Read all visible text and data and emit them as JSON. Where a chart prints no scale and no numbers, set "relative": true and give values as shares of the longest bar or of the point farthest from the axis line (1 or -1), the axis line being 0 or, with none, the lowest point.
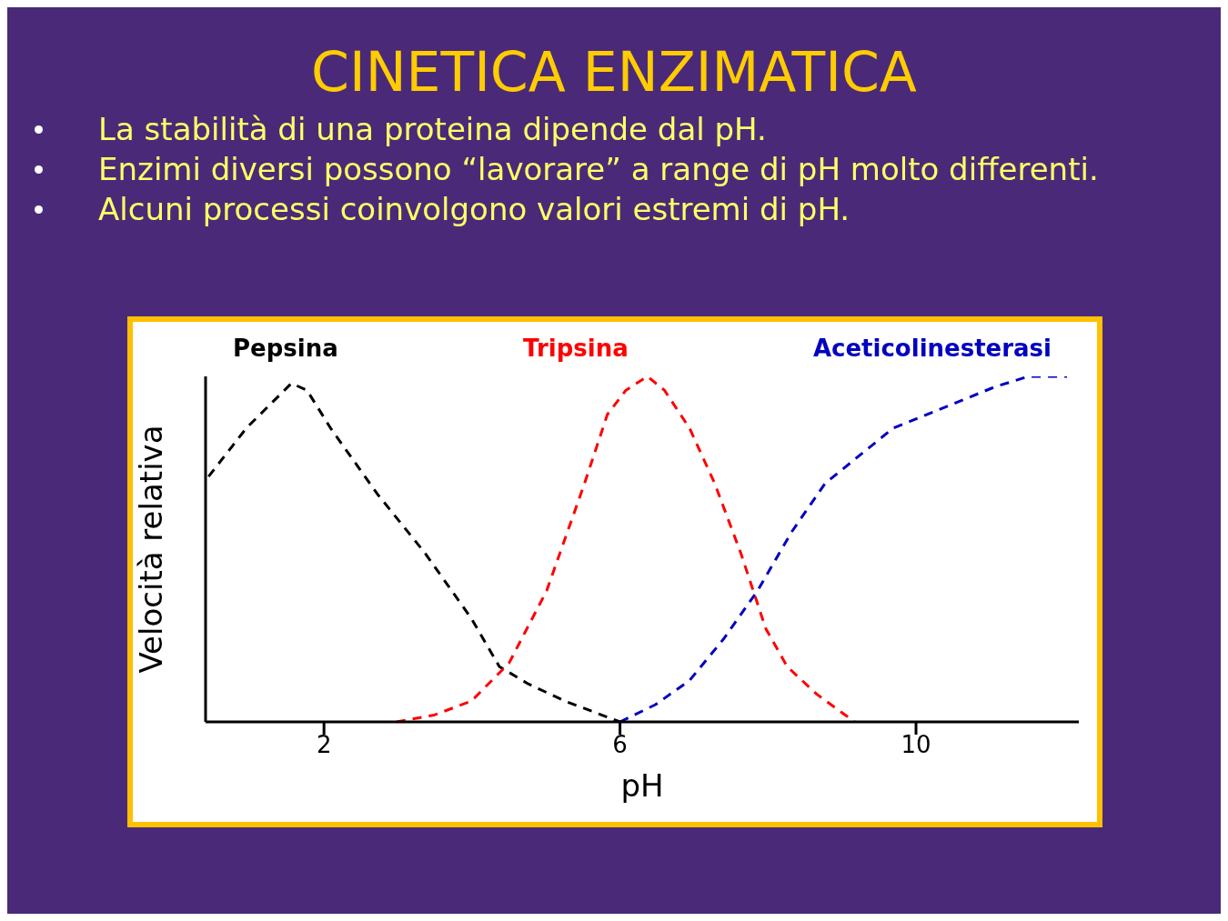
{
  "chart_data": {
    "type": "line",
    "title": "CINETICA ENZIMATICA",
    "annotations": [
      "La stabilità di una proteina dipende dal pH.",
      "Enzimi diversi possono “lavorare” a range di pH molto differenti.",
      "Alcuni processi coinvolgono valori estremi di pH."
    ],
    "xlabel": "pH",
    "ylabel": "Velocità relativa",
    "relative": true,
    "xlim": [
      0.4,
      12.2
    ],
    "xticks": [
      2,
      6,
      10
    ],
    "grid": false,
    "marker": "none",
    "line_style": "dashed",
    "series": [
      {
        "name": "Pepsina",
        "color": "#000000",
        "x": [
          0.44,
          0.95,
          1.56,
          1.77,
          2.09,
          2.72,
          3.36,
          3.99,
          4.37,
          4.76,
          5.26,
          6
        ],
        "values": [
          0.71,
          0.85,
          0.98,
          0.96,
          0.85,
          0.66,
          0.49,
          0.3,
          0.16,
          0.11,
          0.06,
          0
        ]
      },
      {
        "name": "Tripsina",
        "color": "#ff0000",
        "x": [
          2.98,
          3.49,
          3.99,
          4.5,
          5.01,
          5.52,
          5.83,
          6.08,
          6.37,
          6.6,
          6.94,
          7.28,
          7.63,
          7.97,
          8.26,
          8.66,
          9.17
        ],
        "values": [
          0,
          0.02,
          0.06,
          0.17,
          0.38,
          0.69,
          0.89,
          0.96,
          1.0,
          0.96,
          0.85,
          0.69,
          0.49,
          0.27,
          0.16,
          0.08,
          0
        ]
      },
      {
        "name": "Aceticolinesterasi",
        "color": "#0000c0",
        "x": [
          6,
          6.48,
          6.94,
          7.4,
          7.86,
          8.32,
          8.77,
          9.23,
          9.69,
          10.15,
          10.61,
          11.07,
          11.52,
          12.04
        ],
        "values": [
          0,
          0.05,
          0.12,
          0.24,
          0.38,
          0.55,
          0.69,
          0.77,
          0.85,
          0.89,
          0.93,
          0.97,
          1.0,
          1.0
        ]
      }
    ]
  }
}
